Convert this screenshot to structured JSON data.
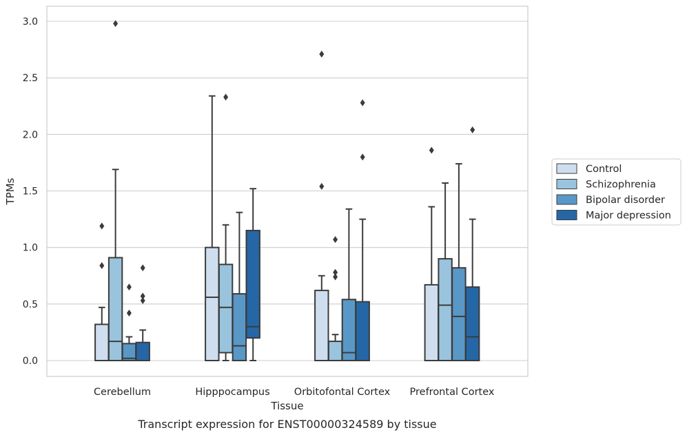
{
  "chart_data": {
    "type": "box",
    "title": "",
    "caption": "Transcript expression for ENST00000324589 by tissue",
    "xlabel": "Tissue",
    "ylabel": "TPMs",
    "ylim": [
      -0.14,
      3.14
    ],
    "yticks": [
      "0.0",
      "0.5",
      "1.0",
      "1.5",
      "2.0",
      "2.5",
      "3.0"
    ],
    "ytick_values": [
      0.0,
      0.5,
      1.0,
      1.5,
      2.0,
      2.5,
      3.0
    ],
    "grid": "horizontal",
    "legend_position": "right-outside",
    "categories": [
      "Cerebellum",
      "Hipppocampus",
      "Orbitofontal Cortex",
      "Prefrontal Cortex"
    ],
    "series": [
      {
        "name": "Control",
        "color": "#cfdeef",
        "boxes": [
          {
            "whislo": 0.0,
            "q1": 0.0,
            "med": 0.0,
            "q3": 0.32,
            "whishi": 0.47,
            "fliers": [
              0.84,
              1.19
            ]
          },
          {
            "whislo": 0.0,
            "q1": 0.0,
            "med": 0.56,
            "q3": 1.0,
            "whishi": 2.34,
            "fliers": []
          },
          {
            "whislo": 0.0,
            "q1": 0.0,
            "med": 0.0,
            "q3": 0.62,
            "whishi": 0.75,
            "fliers": [
              1.54,
              2.71
            ]
          },
          {
            "whislo": 0.0,
            "q1": 0.0,
            "med": 0.0,
            "q3": 0.67,
            "whishi": 1.36,
            "fliers": [
              1.86
            ]
          }
        ]
      },
      {
        "name": "Schizophrenia",
        "color": "#9ac4dd",
        "boxes": [
          {
            "whislo": 0.0,
            "q1": 0.0,
            "med": 0.17,
            "q3": 0.91,
            "whishi": 1.69,
            "fliers": [
              2.98
            ]
          },
          {
            "whislo": 0.0,
            "q1": 0.07,
            "med": 0.47,
            "q3": 0.85,
            "whishi": 1.2,
            "fliers": [
              2.33
            ]
          },
          {
            "whislo": 0.0,
            "q1": 0.0,
            "med": 0.0,
            "q3": 0.17,
            "whishi": 0.23,
            "fliers": [
              0.74,
              0.78,
              1.07
            ]
          },
          {
            "whislo": 0.0,
            "q1": 0.0,
            "med": 0.49,
            "q3": 0.9,
            "whishi": 1.57,
            "fliers": []
          }
        ]
      },
      {
        "name": "Bipolar disorder",
        "color": "#5998c6",
        "boxes": [
          {
            "whislo": 0.0,
            "q1": 0.0,
            "med": 0.02,
            "q3": 0.15,
            "whishi": 0.21,
            "fliers": [
              0.42,
              0.65
            ]
          },
          {
            "whislo": 0.0,
            "q1": 0.0,
            "med": 0.13,
            "q3": 0.59,
            "whishi": 1.31,
            "fliers": []
          },
          {
            "whislo": 0.0,
            "q1": 0.0,
            "med": 0.07,
            "q3": 0.54,
            "whishi": 1.34,
            "fliers": []
          },
          {
            "whislo": 0.0,
            "q1": 0.0,
            "med": 0.39,
            "q3": 0.82,
            "whishi": 1.74,
            "fliers": []
          }
        ]
      },
      {
        "name": "Major depression",
        "color": "#2567a6",
        "boxes": [
          {
            "whislo": 0.0,
            "q1": 0.0,
            "med": 0.0,
            "q3": 0.16,
            "whishi": 0.27,
            "fliers": [
              0.53,
              0.57,
              0.82
            ]
          },
          {
            "whislo": 0.0,
            "q1": 0.2,
            "med": 0.3,
            "q3": 1.15,
            "whishi": 1.52,
            "fliers": []
          },
          {
            "whislo": 0.0,
            "q1": 0.0,
            "med": 0.0,
            "q3": 0.52,
            "whishi": 1.25,
            "fliers": [
              1.8,
              2.28
            ]
          },
          {
            "whislo": 0.0,
            "q1": 0.0,
            "med": 0.21,
            "q3": 0.65,
            "whishi": 1.25,
            "fliers": [
              2.04
            ]
          }
        ]
      }
    ]
  }
}
